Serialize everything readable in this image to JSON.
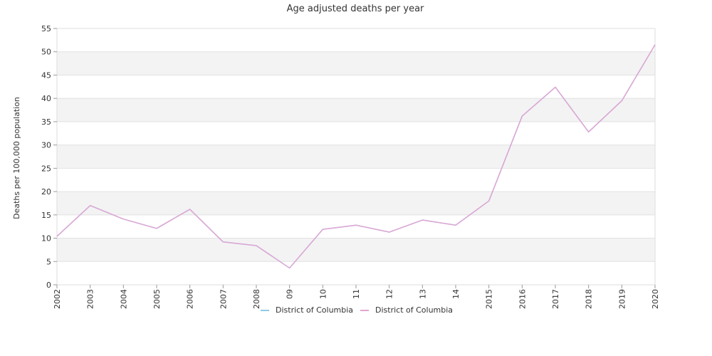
{
  "chart_data": {
    "type": "line",
    "title": "Age adjusted deaths per year",
    "xlabel": "",
    "ylabel": "Deaths per 100,000 population",
    "ylim": [
      0,
      55
    ],
    "yticks": [
      0,
      5,
      10,
      15,
      20,
      25,
      30,
      35,
      40,
      45,
      50,
      55
    ],
    "x": [
      "2002",
      "2003",
      "2004",
      "2005",
      "2006",
      "2007",
      "2008",
      "2009",
      "2010",
      "2011",
      "2012",
      "2013",
      "2014",
      "2015",
      "2016",
      "2017",
      "2018",
      "2019",
      "2020"
    ],
    "x_tick_labels": [
      "2002",
      "2003",
      "2004",
      "2005",
      "2006",
      "2007",
      "2008",
      "09",
      "10",
      "11",
      "12",
      "13",
      "14",
      "2015",
      "2016",
      "2017",
      "2018",
      "2019",
      "2020"
    ],
    "grid": true,
    "legend_position": "bottom-center",
    "series": [
      {
        "name": "District of Columbia",
        "color": "#8ecae6",
        "values": [
          10.4,
          17.0,
          14.1,
          12.1,
          16.2,
          9.2,
          8.4,
          3.6,
          11.9,
          12.8,
          11.3,
          13.9,
          12.8,
          18.0,
          36.2,
          42.4,
          32.8,
          39.5,
          51.5
        ]
      },
      {
        "name": "District of Columbia",
        "color": "#e0a6d4",
        "values": [
          10.4,
          17.0,
          14.1,
          12.1,
          16.2,
          9.2,
          8.4,
          3.6,
          11.9,
          12.8,
          11.3,
          13.9,
          12.8,
          18.0,
          36.2,
          42.4,
          32.8,
          39.5,
          51.5
        ]
      }
    ]
  }
}
